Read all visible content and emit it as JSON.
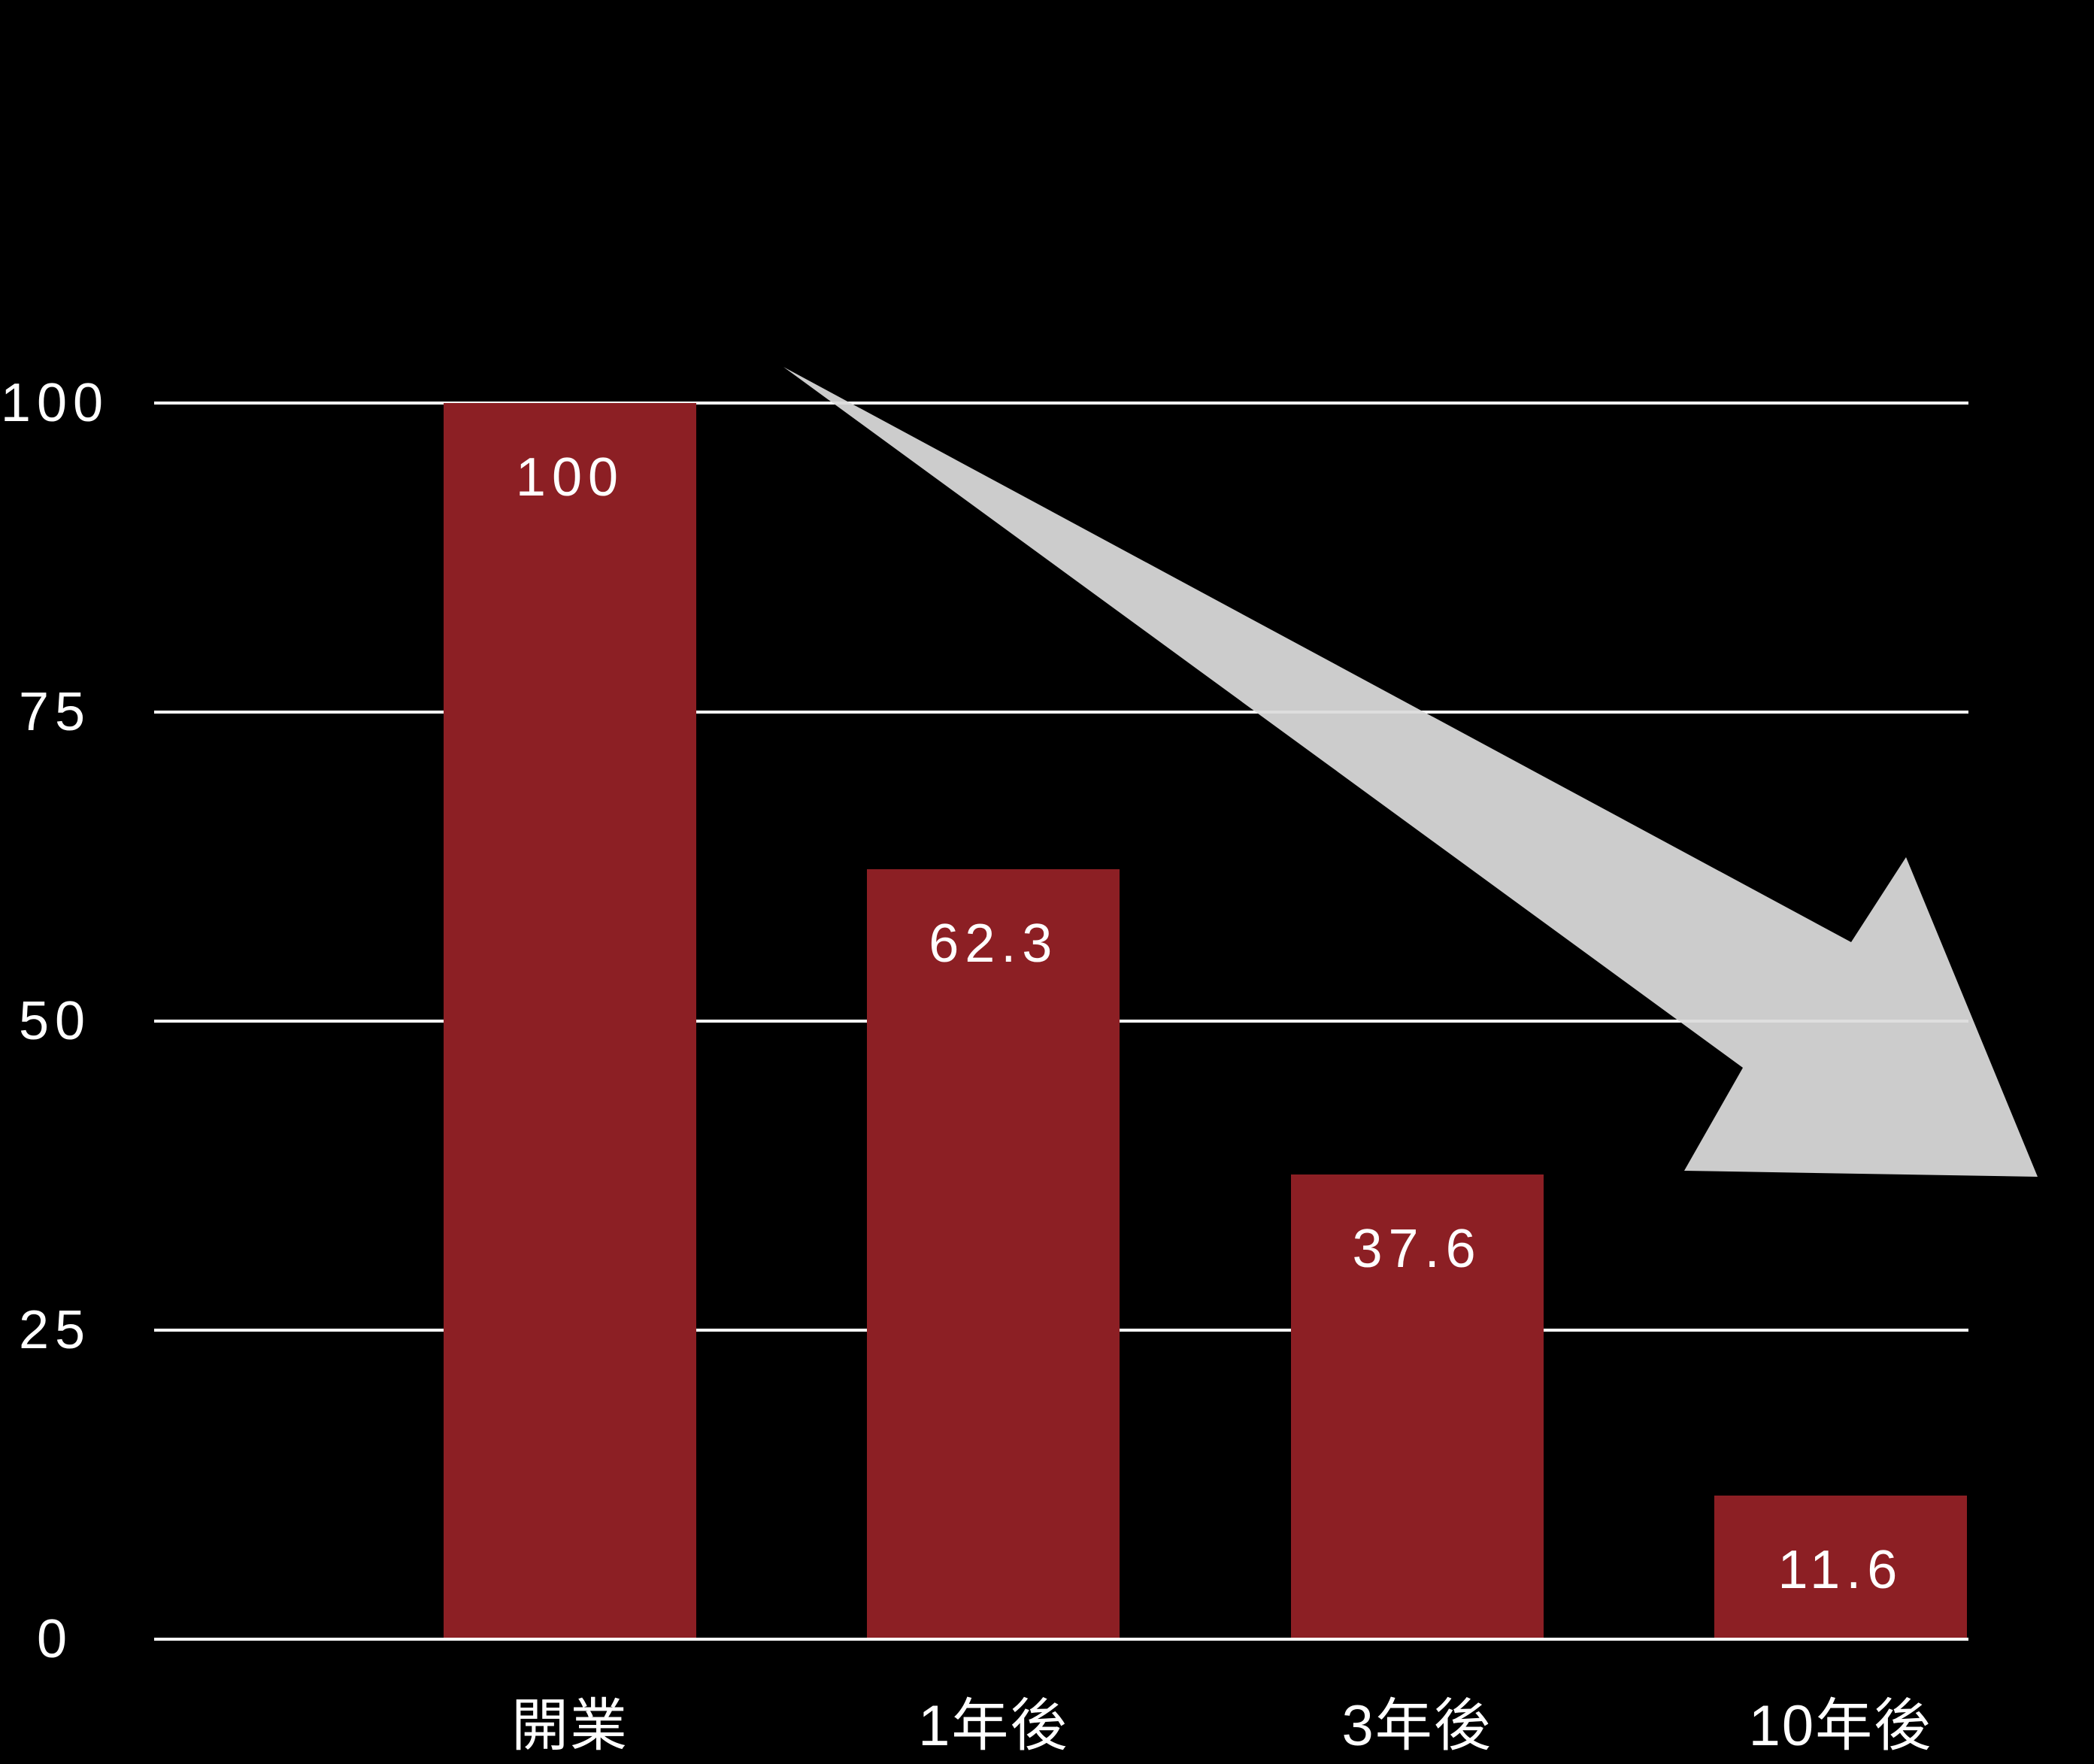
{
  "chart_data": {
    "type": "bar",
    "categories": [
      "開業",
      "1年後",
      "3年後",
      "10年後"
    ],
    "values": [
      100,
      62.3,
      37.6,
      11.6
    ],
    "bar_labels": [
      "100",
      "62.3",
      "37.6",
      "11.6"
    ],
    "title": "",
    "xlabel": "",
    "ylabel": "",
    "ylim": [
      0,
      100
    ],
    "yticks": [
      0,
      25,
      50,
      75,
      100
    ],
    "ytick_labels": [
      "0",
      "25",
      "50",
      "75",
      "100"
    ],
    "grid": true,
    "legend": false,
    "colors": {
      "background": "#000000",
      "bar": "#8C1F24",
      "gridline": "#FFFFFF",
      "text": "#FFFFFF",
      "arrow": "#CCCCCC"
    },
    "annotations": {
      "decline_arrow": {
        "shape": "tapered-block-arrow",
        "direction": "down-right",
        "color": "#CCCCCC"
      }
    }
  }
}
